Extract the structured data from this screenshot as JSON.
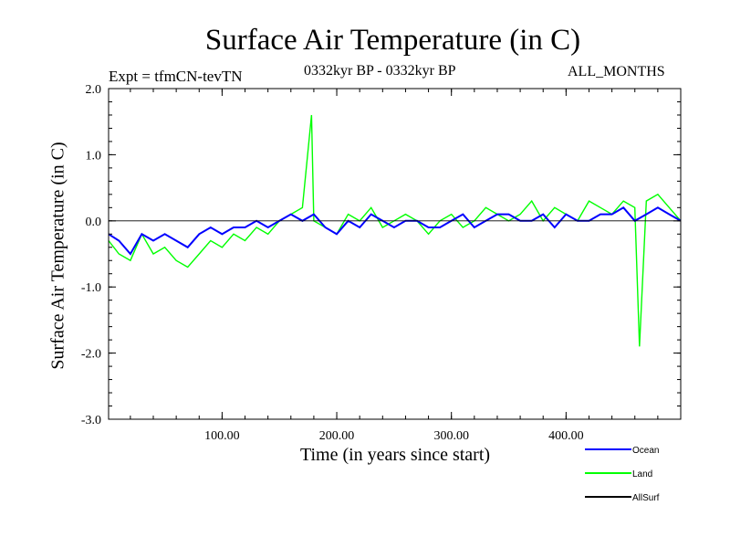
{
  "chart_data": {
    "type": "line",
    "title": "Surface Air Temperature (in C)",
    "subtitle_left": "Expt = tfmCN-tevTN",
    "subtitle_center": "0332kyr BP - 0332kyr BP",
    "subtitle_right": "ALL_MONTHS",
    "xlabel": "Time (in years since start)",
    "ylabel": "Surface Air Temperature (in C)",
    "xlim": [
      1,
      500
    ],
    "ylim": [
      -3.0,
      2.0
    ],
    "x_ticks": [
      100,
      200,
      300,
      400
    ],
    "x_tick_labels": [
      "100.00",
      "200.00",
      "300.00",
      "400.00"
    ],
    "y_ticks": [
      -3.0,
      -2.0,
      -1.0,
      0.0,
      1.0,
      2.0
    ],
    "y_tick_labels": [
      "-3.0",
      "-2.0",
      "-1.0",
      "0.0",
      "1.0",
      "2.0"
    ],
    "zero_reference_line": 0.0,
    "legend_placement": "bottom-right, outside plot",
    "series": [
      {
        "name": "Land",
        "color": "#00ff00",
        "x": [
          1,
          10,
          20,
          30,
          40,
          50,
          60,
          70,
          80,
          90,
          100,
          110,
          120,
          130,
          140,
          150,
          160,
          170,
          178,
          180,
          190,
          200,
          210,
          220,
          230,
          240,
          250,
          260,
          270,
          280,
          290,
          300,
          310,
          320,
          330,
          340,
          350,
          360,
          370,
          380,
          390,
          400,
          410,
          420,
          430,
          440,
          450,
          460,
          464,
          470,
          480,
          490,
          500
        ],
        "values": [
          -0.3,
          -0.5,
          -0.6,
          -0.2,
          -0.5,
          -0.4,
          -0.6,
          -0.7,
          -0.5,
          -0.3,
          -0.4,
          -0.2,
          -0.3,
          -0.1,
          -0.2,
          0.0,
          0.1,
          0.2,
          1.6,
          0.0,
          -0.1,
          -0.2,
          0.1,
          0.0,
          0.2,
          -0.1,
          0.0,
          0.1,
          0.0,
          -0.2,
          0.0,
          0.1,
          -0.1,
          0.0,
          0.2,
          0.1,
          0.0,
          0.1,
          0.3,
          0.0,
          0.2,
          0.1,
          0.0,
          0.3,
          0.2,
          0.1,
          0.3,
          0.2,
          -1.9,
          0.3,
          0.4,
          0.2,
          0.0
        ]
      },
      {
        "name": "Ocean",
        "color": "#0000ff",
        "x": [
          1,
          10,
          20,
          30,
          40,
          50,
          60,
          70,
          80,
          90,
          100,
          110,
          120,
          130,
          140,
          150,
          160,
          170,
          180,
          190,
          200,
          210,
          220,
          230,
          240,
          250,
          260,
          270,
          280,
          290,
          300,
          310,
          320,
          330,
          340,
          350,
          360,
          370,
          380,
          390,
          400,
          410,
          420,
          430,
          440,
          450,
          460,
          470,
          480,
          490,
          500
        ],
        "values": [
          -0.2,
          -0.3,
          -0.5,
          -0.2,
          -0.3,
          -0.2,
          -0.3,
          -0.4,
          -0.2,
          -0.1,
          -0.2,
          -0.1,
          -0.1,
          0.0,
          -0.1,
          0.0,
          0.1,
          0.0,
          0.1,
          -0.1,
          -0.2,
          0.0,
          -0.1,
          0.1,
          0.0,
          -0.1,
          0.0,
          0.0,
          -0.1,
          -0.1,
          0.0,
          0.1,
          -0.1,
          0.0,
          0.1,
          0.1,
          0.0,
          0.0,
          0.1,
          -0.1,
          0.1,
          0.0,
          0.0,
          0.1,
          0.1,
          0.2,
          0.0,
          0.1,
          0.2,
          0.1,
          0.0
        ]
      },
      {
        "name": "AllSurf",
        "color": "#000000",
        "x": [],
        "values": []
      }
    ],
    "legend": [
      {
        "name": "Ocean",
        "color": "#0000ff"
      },
      {
        "name": "Land",
        "color": "#00ff00"
      },
      {
        "name": "AllSurf",
        "color": "#000000"
      }
    ]
  }
}
